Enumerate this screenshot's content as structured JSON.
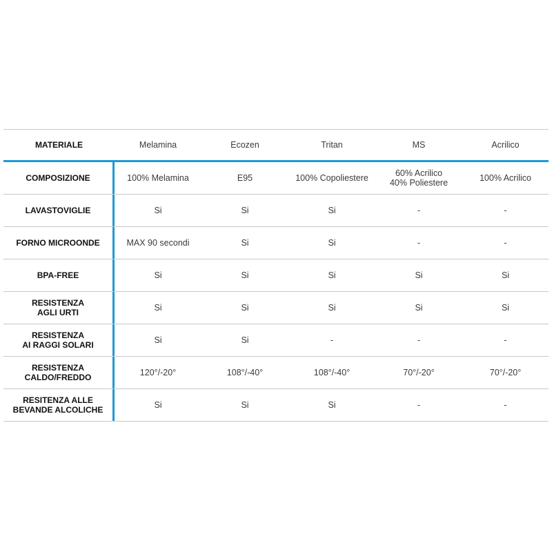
{
  "header": {
    "label": "MATERIALE",
    "columns": [
      "Melamina",
      "Ecozen",
      "Tritan",
      "MS",
      "Acrilico"
    ]
  },
  "rows": [
    {
      "label": "COMPOSIZIONE",
      "values": [
        "100% Melamina",
        "E95",
        "100% Copoliestere",
        "60% Acrilico\n40% Poliestere",
        "100% Acrilico"
      ]
    },
    {
      "label": "LAVASTOVIGLIE",
      "values": [
        "Si",
        "Si",
        "Si",
        "-",
        "-"
      ]
    },
    {
      "label": "FORNO MICROONDE",
      "values": [
        "MAX 90 secondi",
        "Si",
        "Si",
        "-",
        "-"
      ]
    },
    {
      "label": "BPA-FREE",
      "values": [
        "Si",
        "Si",
        "Si",
        "Si",
        "Si"
      ]
    },
    {
      "label": "RESISTENZA\nAGLI URTI",
      "values": [
        "Si",
        "Si",
        "Si",
        "Si",
        "Si"
      ]
    },
    {
      "label": "RESISTENZA\nAI RAGGI SOLARI",
      "values": [
        "Si",
        "Si",
        "-",
        "-",
        "-"
      ]
    },
    {
      "label": "RESISTENZA\nCALDO/FREDDO",
      "values": [
        "120°/-20°",
        "108°/-40°",
        "108°/-40°",
        "70°/-20°",
        "70°/-20°"
      ]
    },
    {
      "label": "RESITENZA ALLE\nBEVANDE ALCOLICHE",
      "values": [
        "Si",
        "Si",
        "Si",
        "-",
        "-"
      ]
    }
  ],
  "colors": {
    "accent": "#1a9ad6",
    "rule": "#c8c8c8"
  }
}
